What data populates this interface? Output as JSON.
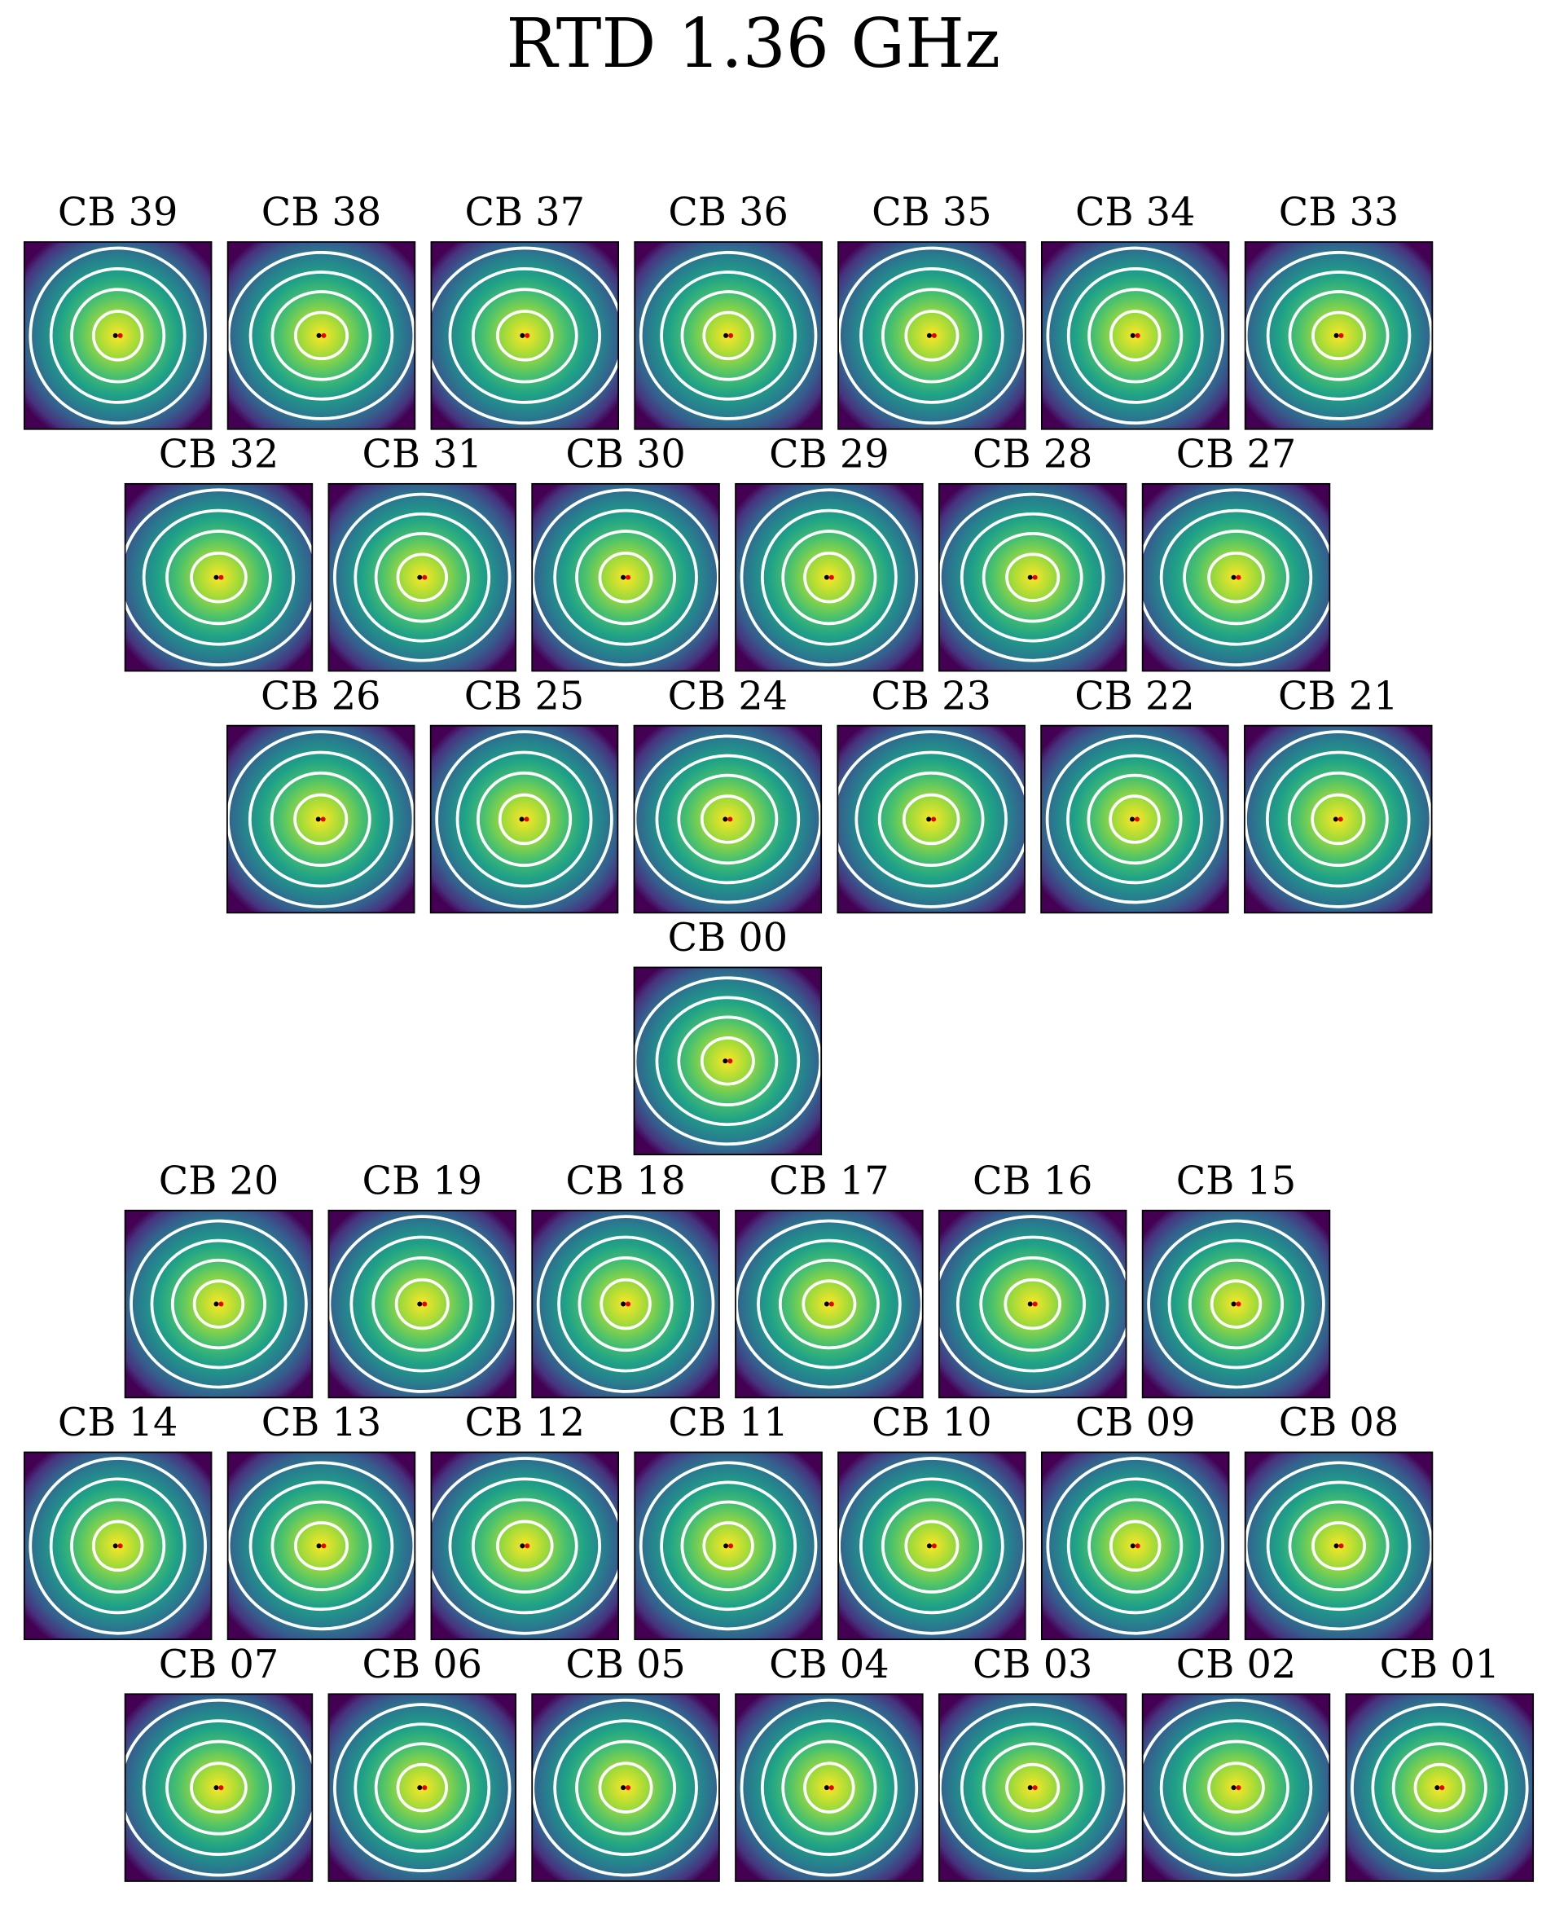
{
  "title": "RTD 1.36 GHz",
  "rows": [
    [
      "CB 39",
      "CB 38",
      "CB 37",
      "CB 36",
      "CB 35",
      "CB 34",
      "CB 33"
    ],
    [
      "CB 32",
      "CB 31",
      "CB 30",
      "CB 29",
      "CB 28",
      "CB 27"
    ],
    [
      "CB 26",
      "CB 25",
      "CB 24",
      "CB 23",
      "CB 22",
      "CB 21"
    ],
    [
      "CB 00"
    ],
    [
      "CB 20",
      "CB 19",
      "CB 18",
      "CB 17",
      "CB 16",
      "CB 15"
    ],
    [
      "CB 14",
      "CB 13",
      "CB 12",
      "CB 11",
      "CB 10",
      "CB 09",
      "CB 08"
    ],
    [
      "CB 07",
      "CB 06",
      "CB 05",
      "CB 04",
      "CB 03",
      "CB 02",
      "CB 01"
    ]
  ]
}
